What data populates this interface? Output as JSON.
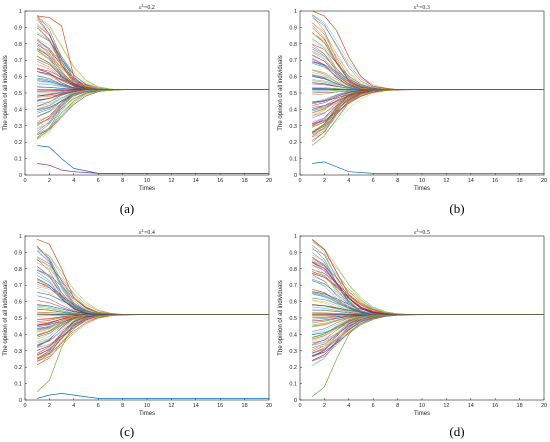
{
  "chart_data": [
    {
      "type": "line",
      "title": "ε^L=0.2",
      "xlabel": "Times",
      "ylabel": "The opinion of all individuals",
      "xlim": [
        0,
        20
      ],
      "ylim": [
        0,
        1
      ],
      "xticks": [
        0,
        2,
        4,
        6,
        8,
        10,
        12,
        14,
        16,
        18,
        20
      ],
      "yticks": [
        0,
        0.1,
        0.2,
        0.3,
        0.4,
        0.5,
        0.6,
        0.7,
        0.8,
        0.9,
        1
      ],
      "ytick_labels": [
        "0",
        "0.1",
        "0.2",
        "0.3",
        "0.4",
        "0.5",
        "0.6",
        "0.7",
        "0.8",
        "0.9",
        "1"
      ],
      "consensus_value": 0.52,
      "series_count": 100,
      "example_series": [
        {
          "x": [
            1,
            2,
            3,
            4,
            5,
            6,
            8,
            10,
            20
          ],
          "values": [
            0.97,
            0.96,
            0.91,
            0.6,
            0.53,
            0.52,
            0.52,
            0.52,
            0.52
          ]
        },
        {
          "x": [
            1,
            2,
            3,
            4,
            5,
            6,
            8,
            10,
            20
          ],
          "values": [
            0.22,
            0.28,
            0.38,
            0.45,
            0.5,
            0.51,
            0.52,
            0.52,
            0.52
          ]
        },
        {
          "x": [
            1,
            2,
            3,
            4,
            6,
            8,
            20
          ],
          "values": [
            0.18,
            0.17,
            0.1,
            0.04,
            0.01,
            0.01,
            0.01
          ]
        },
        {
          "x": [
            1,
            2,
            3,
            4,
            6,
            8,
            20
          ],
          "values": [
            0.07,
            0.06,
            0.03,
            0.02,
            0.01,
            0.01,
            0.01
          ]
        }
      ],
      "caption": "(a)"
    },
    {
      "type": "line",
      "title": "ε^L=0.3",
      "xlabel": "Times",
      "ylabel": "The opinion of all individuals",
      "xlim": [
        0,
        20
      ],
      "ylim": [
        0,
        1
      ],
      "xticks": [
        0,
        2,
        4,
        6,
        8,
        10,
        12,
        14,
        16,
        18,
        20
      ],
      "yticks": [
        0,
        0.1,
        0.2,
        0.3,
        0.4,
        0.5,
        0.6,
        0.7,
        0.8,
        0.9,
        1
      ],
      "ytick_labels": [
        "0",
        "0.1",
        "0.2",
        "0.3",
        "0.4",
        "0.5",
        "0.6",
        "0.7",
        "0.8",
        "0.9",
        "1"
      ],
      "consensus_value": 0.52,
      "series_count": 100,
      "example_series": [
        {
          "x": [
            1,
            2,
            3,
            4,
            5,
            6,
            8,
            10,
            20
          ],
          "values": [
            1.0,
            0.97,
            0.88,
            0.72,
            0.6,
            0.54,
            0.52,
            0.52,
            0.52
          ]
        },
        {
          "x": [
            1,
            2,
            3,
            4,
            5,
            6,
            8,
            10,
            20
          ],
          "values": [
            0.18,
            0.24,
            0.34,
            0.44,
            0.49,
            0.51,
            0.52,
            0.52,
            0.52
          ]
        },
        {
          "x": [
            1,
            2,
            3,
            4,
            6,
            8,
            20
          ],
          "values": [
            0.07,
            0.08,
            0.05,
            0.02,
            0.01,
            0.01,
            0.01
          ]
        }
      ],
      "caption": "(b)"
    },
    {
      "type": "line",
      "title": "ε^L=0.4",
      "xlabel": "Times",
      "ylabel": "The opinion of all individuals",
      "xlim": [
        0,
        20
      ],
      "ylim": [
        0,
        1
      ],
      "xticks": [
        0,
        2,
        4,
        6,
        8,
        10,
        12,
        14,
        16,
        18,
        20
      ],
      "yticks": [
        0,
        0.1,
        0.2,
        0.3,
        0.4,
        0.5,
        0.6,
        0.7,
        0.8,
        0.9,
        1
      ],
      "ytick_labels": [
        "0",
        "0.1",
        "0.2",
        "0.3",
        "0.4",
        "0.5",
        "0.6",
        "0.7",
        "0.8",
        "0.9",
        "1"
      ],
      "consensus_value": 0.52,
      "series_count": 100,
      "example_series": [
        {
          "x": [
            1,
            2,
            3,
            4,
            5,
            6,
            8,
            10,
            20
          ],
          "values": [
            0.98,
            0.95,
            0.8,
            0.62,
            0.56,
            0.53,
            0.52,
            0.52,
            0.52
          ]
        },
        {
          "x": [
            1,
            2,
            3,
            4,
            5,
            6,
            8,
            10,
            20
          ],
          "values": [
            0.05,
            0.12,
            0.32,
            0.46,
            0.5,
            0.51,
            0.52,
            0.52,
            0.52
          ]
        },
        {
          "x": [
            1,
            2,
            3,
            4,
            6,
            8,
            20
          ],
          "values": [
            0.01,
            0.03,
            0.04,
            0.03,
            0.01,
            0.01,
            0.01
          ]
        }
      ],
      "caption": "(c)"
    },
    {
      "type": "line",
      "title": "ε^L=0.5",
      "xlabel": "Times",
      "ylabel": "The opinion of all individuals",
      "xlim": [
        0,
        20
      ],
      "ylim": [
        0,
        1
      ],
      "xticks": [
        0,
        2,
        4,
        6,
        8,
        10,
        12,
        14,
        16,
        18,
        20
      ],
      "yticks": [
        0,
        0.1,
        0.2,
        0.3,
        0.4,
        0.5,
        0.6,
        0.7,
        0.8,
        0.9,
        1
      ],
      "ytick_labels": [
        "0",
        "0.1",
        "0.2",
        "0.3",
        "0.4",
        "0.5",
        "0.6",
        "0.7",
        "0.8",
        "0.9",
        "1"
      ],
      "consensus_value": 0.52,
      "series_count": 100,
      "example_series": [
        {
          "x": [
            1,
            2,
            3,
            4,
            5,
            6,
            8,
            10,
            20
          ],
          "values": [
            0.98,
            0.92,
            0.78,
            0.64,
            0.58,
            0.54,
            0.52,
            0.52,
            0.52
          ]
        },
        {
          "x": [
            1,
            2,
            3,
            4,
            5,
            6,
            8,
            10,
            20
          ],
          "values": [
            0.02,
            0.08,
            0.25,
            0.4,
            0.48,
            0.51,
            0.52,
            0.52,
            0.52
          ]
        }
      ],
      "caption": "(d)"
    }
  ],
  "colors": [
    "#0072bd",
    "#d95319",
    "#edb120",
    "#7e2f8e",
    "#77ac30",
    "#4dbeee",
    "#a2142f"
  ]
}
